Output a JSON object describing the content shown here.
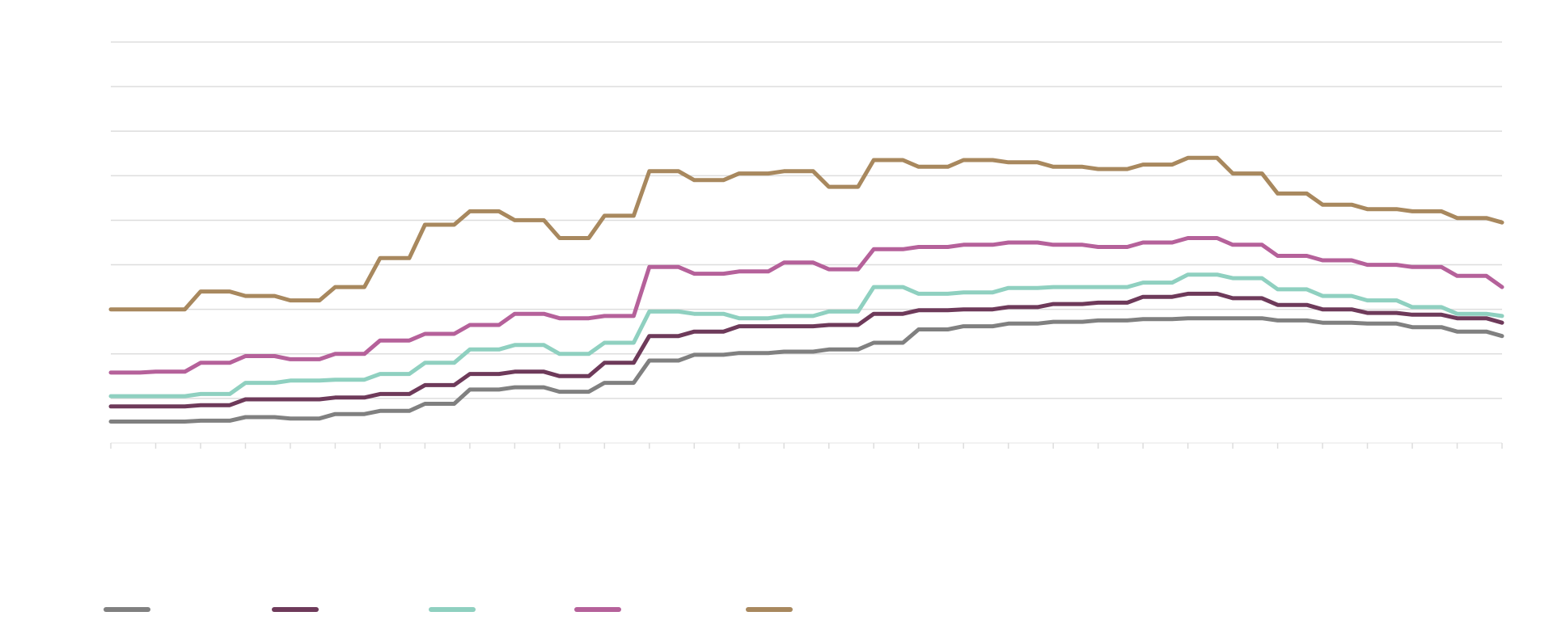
{
  "chart_data": {
    "type": "line",
    "title": "",
    "xlabel": "",
    "ylabel": "",
    "ylim": [
      0,
      9
    ],
    "x_count": 32,
    "grid": true,
    "legend_position": "bottom-left",
    "series": [
      {
        "color": "#808080",
        "values": [
          0.48,
          0.48,
          0.5,
          0.58,
          0.55,
          0.65,
          0.72,
          0.88,
          1.2,
          1.25,
          1.15,
          1.35,
          1.85,
          1.98,
          2.02,
          2.05,
          2.1,
          2.25,
          2.55,
          2.62,
          2.68,
          2.72,
          2.75,
          2.78,
          2.8,
          2.8,
          2.75,
          2.7,
          2.68,
          2.6,
          2.5,
          2.4
        ]
      },
      {
        "color": "#6e3a5a",
        "values": [
          0.82,
          0.82,
          0.85,
          0.98,
          0.98,
          1.02,
          1.1,
          1.3,
          1.55,
          1.6,
          1.5,
          1.8,
          2.4,
          2.5,
          2.62,
          2.62,
          2.65,
          2.9,
          2.98,
          3.0,
          3.05,
          3.12,
          3.15,
          3.28,
          3.35,
          3.25,
          3.1,
          3.0,
          2.92,
          2.88,
          2.8,
          2.7
        ]
      },
      {
        "color": "#8fd0c0",
        "values": [
          1.05,
          1.05,
          1.1,
          1.35,
          1.4,
          1.42,
          1.55,
          1.8,
          2.1,
          2.2,
          2.0,
          2.25,
          2.95,
          2.9,
          2.8,
          2.85,
          2.95,
          3.5,
          3.35,
          3.38,
          3.48,
          3.5,
          3.5,
          3.6,
          3.78,
          3.7,
          3.45,
          3.3,
          3.2,
          3.05,
          2.9,
          2.85
        ]
      },
      {
        "color": "#b5619a",
        "values": [
          1.58,
          1.6,
          1.8,
          1.95,
          1.88,
          2.0,
          2.3,
          2.45,
          2.65,
          2.9,
          2.8,
          2.85,
          3.95,
          3.8,
          3.85,
          4.05,
          3.9,
          4.35,
          4.4,
          4.45,
          4.5,
          4.45,
          4.4,
          4.5,
          4.6,
          4.45,
          4.2,
          4.1,
          4.0,
          3.95,
          3.75,
          3.5
        ]
      },
      {
        "color": "#a8885e",
        "values": [
          3.0,
          3.0,
          3.4,
          3.3,
          3.2,
          3.5,
          4.15,
          4.9,
          5.2,
          5.0,
          4.6,
          5.1,
          6.1,
          5.9,
          6.05,
          6.1,
          5.75,
          6.35,
          6.2,
          6.35,
          6.3,
          6.2,
          6.15,
          6.25,
          6.4,
          6.05,
          5.6,
          5.35,
          5.25,
          5.2,
          5.05,
          4.95
        ]
      }
    ]
  }
}
